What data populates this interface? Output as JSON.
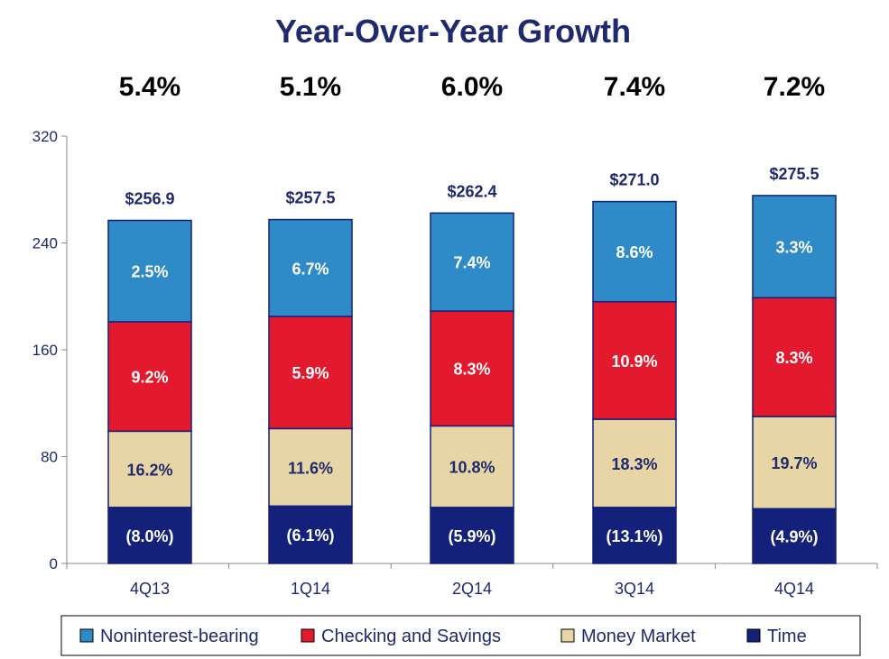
{
  "chart_data": {
    "type": "bar",
    "stacked": true,
    "title": "Year-Over-Year Growth",
    "categories": [
      "4Q13",
      "1Q14",
      "2Q14",
      "3Q14",
      "4Q14"
    ],
    "growth_labels": [
      "5.4%",
      "5.1%",
      "6.0%",
      "7.4%",
      "7.2%"
    ],
    "totals": [
      256.9,
      257.5,
      262.4,
      271.0,
      275.5
    ],
    "total_labels": [
      "$256.9",
      "$257.5",
      "$262.4",
      "$271.0",
      "$275.5"
    ],
    "ylim": [
      0,
      320
    ],
    "yticks": [
      0,
      80,
      160,
      240,
      320
    ],
    "grid": false,
    "legend_position": "bottom",
    "series": [
      {
        "name": "Time",
        "color": "#13217a",
        "label_color": "#ffffff",
        "values": [
          42,
          43,
          42,
          42,
          41
        ],
        "labels": [
          "(8.0%)",
          "(6.1%)",
          "(5.9%)",
          "(13.1%)",
          "(4.9%)"
        ]
      },
      {
        "name": "Money Market",
        "color": "#e8d5a6",
        "label_color": "#1f2a6e",
        "values": [
          57,
          58,
          61,
          66,
          69
        ],
        "labels": [
          "16.2%",
          "11.6%",
          "10.8%",
          "18.3%",
          "19.7%"
        ]
      },
      {
        "name": "Checking and Savings",
        "color": "#e3192d",
        "label_color": "#ffffff",
        "values": [
          82,
          84,
          86,
          88,
          89
        ],
        "labels": [
          "9.2%",
          "5.9%",
          "8.3%",
          "10.9%",
          "8.3%"
        ]
      },
      {
        "name": "Noninterest-bearing",
        "color": "#2f8ac8",
        "label_color": "#ffffff",
        "values": [
          75.9,
          72.5,
          73.4,
          75.0,
          76.5
        ],
        "labels": [
          "2.5%",
          "6.7%",
          "7.4%",
          "8.6%",
          "3.3%"
        ]
      }
    ],
    "legend_order": [
      "Noninterest-bearing",
      "Checking and Savings",
      "Money Market",
      "Time"
    ]
  },
  "colors": {
    "title": "#1f2a6e",
    "axis": "#8a8a8a",
    "bar_outline": "#13217a"
  }
}
